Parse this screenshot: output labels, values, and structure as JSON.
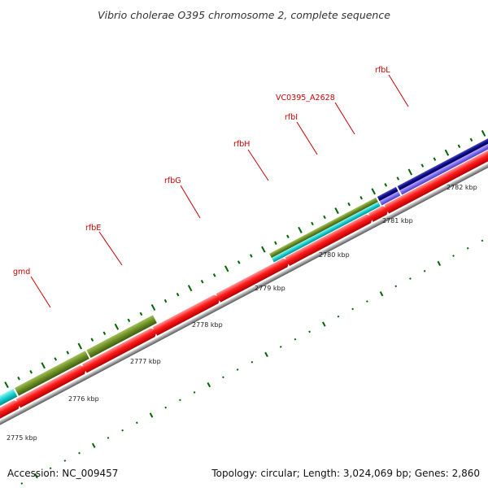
{
  "title": "Vibrio cholerae O395 chromosome 2, complete sequence",
  "footer": {
    "accession": "Accession: NC_009457",
    "summary": "Topology: circular; Length: 3,024,069 bp; Genes: 2,860"
  },
  "colors": {
    "cds": "#ff0000",
    "backbone": "#999999",
    "olive": "#6b8e23",
    "cyan": "#00cccc",
    "navy": "#000080",
    "slate": "#7b68ee",
    "tick": "#006400",
    "label": "#cc0000"
  },
  "genes": [
    {
      "name": "gmd",
      "label": "gmd"
    },
    {
      "name": "rfbE",
      "label": "rfbE"
    },
    {
      "name": "rfbG",
      "label": "rfbG"
    },
    {
      "name": "rfbH",
      "label": "rfbH"
    },
    {
      "name": "rfbI",
      "label": "rfbI"
    },
    {
      "name": "VC0395_A2628",
      "label": "VC0395_A2628"
    },
    {
      "name": "rfbL",
      "label": "rfbL"
    }
  ],
  "scale": {
    "unit": "kbp",
    "labels": [
      "2775 kbp",
      "2776 kbp",
      "2777 kbp",
      "2778 kbp",
      "2779 kbp",
      "2780 kbp",
      "2781 kbp",
      "2782 kbp"
    ]
  }
}
